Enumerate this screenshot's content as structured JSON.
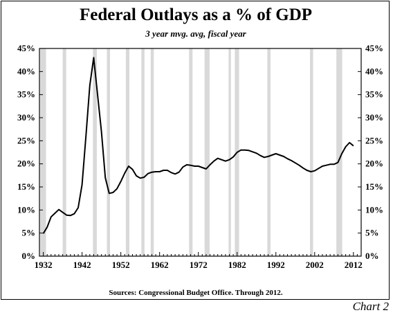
{
  "chart_data": {
    "type": "line",
    "title": "Federal Outlays as a % of GDP",
    "subtitle": "3 year mvg. avg, fiscal year",
    "source": "Sources:  Congressional Budget Office.  Through  2012.",
    "tag": "Chart 2",
    "xlim": [
      1931,
      2014
    ],
    "ylim": [
      0,
      45
    ],
    "x_ticks": [
      1932,
      1942,
      1952,
      1962,
      1972,
      1982,
      1992,
      2002,
      2012
    ],
    "y_ticks": [
      0,
      5,
      10,
      15,
      20,
      25,
      30,
      35,
      40,
      45
    ],
    "y_tick_labels": [
      "0%",
      "5%",
      "10%",
      "15%",
      "20%",
      "25%",
      "30%",
      "35%",
      "40%",
      "45%"
    ],
    "grid": false,
    "recession_shading_color": "#d9d9d9",
    "line_color": "#000000",
    "recessions": [
      [
        1931.2,
        1932.7
      ],
      [
        1937.0,
        1937.9
      ],
      [
        1944.8,
        1945.8
      ],
      [
        1948.4,
        1949.2
      ],
      [
        1953.3,
        1954.2
      ],
      [
        1957.3,
        1958.1
      ],
      [
        1959.7,
        1960.5
      ],
      [
        1969.6,
        1970.5
      ],
      [
        1973.6,
        1974.9
      ],
      [
        1979.8,
        1980.4
      ],
      [
        1981.4,
        1982.5
      ],
      [
        1989.8,
        1990.6
      ],
      [
        2000.8,
        2001.6
      ],
      [
        2007.6,
        2009.1
      ]
    ],
    "series": [
      {
        "x": [
          1932,
          1933,
          1934,
          1935,
          1936,
          1937,
          1938,
          1939,
          1940,
          1941,
          1942,
          1943,
          1944,
          1945,
          1946,
          1947,
          1948,
          1949,
          1950,
          1951,
          1952,
          1953,
          1954,
          1955,
          1956,
          1957,
          1958,
          1959,
          1960,
          1961,
          1962,
          1963,
          1964,
          1965,
          1966,
          1967,
          1968,
          1969,
          1970,
          1971,
          1972,
          1973,
          1974,
          1975,
          1976,
          1977,
          1978,
          1979,
          1980,
          1981,
          1982,
          1983,
          1984,
          1985,
          1986,
          1987,
          1988,
          1989,
          1990,
          1991,
          1992,
          1993,
          1994,
          1995,
          1996,
          1997,
          1998,
          1999,
          2000,
          2001,
          2002,
          2003,
          2004,
          2005,
          2006,
          2007,
          2008,
          2009,
          2010,
          2011,
          2012
        ],
        "values": [
          4.9,
          6.3,
          8.5,
          9.3,
          10.1,
          9.5,
          8.9,
          8.8,
          9.2,
          10.5,
          15.5,
          26.0,
          37.0,
          43.0,
          35.0,
          27.0,
          17.0,
          13.6,
          13.8,
          14.6,
          16.2,
          18.0,
          19.5,
          18.8,
          17.4,
          16.9,
          17.1,
          17.9,
          18.2,
          18.3,
          18.3,
          18.6,
          18.6,
          18.1,
          17.8,
          18.2,
          19.3,
          19.8,
          19.7,
          19.5,
          19.5,
          19.2,
          18.9,
          19.8,
          20.6,
          21.2,
          20.9,
          20.6,
          20.9,
          21.5,
          22.5,
          23.0,
          23.0,
          22.9,
          22.6,
          22.3,
          21.8,
          21.4,
          21.6,
          21.9,
          22.2,
          21.9,
          21.6,
          21.1,
          20.7,
          20.2,
          19.7,
          19.1,
          18.6,
          18.3,
          18.5,
          19.0,
          19.5,
          19.7,
          19.9,
          19.9,
          20.3,
          22.2,
          23.7,
          24.6,
          23.9
        ]
      }
    ]
  }
}
